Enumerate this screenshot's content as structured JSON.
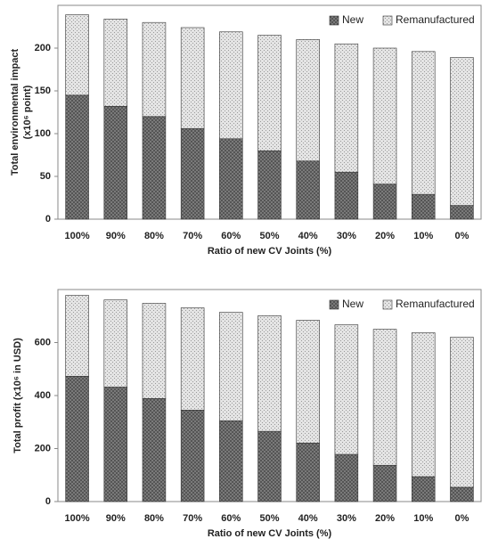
{
  "chart_data": [
    {
      "type": "stacked-bar",
      "ylabel": [
        "Total environmental impact",
        "(x10⁶ point)"
      ],
      "xlabel": "Ratio of new CV Joints (%)",
      "categories": [
        "100%",
        "90%",
        "80%",
        "70%",
        "60%",
        "50%",
        "40%",
        "30%",
        "20%",
        "10%",
        "0%"
      ],
      "series": [
        {
          "name": "New",
          "color": "#7a7a7a",
          "values": [
            145,
            132,
            120,
            106,
            94,
            80,
            68,
            55,
            41,
            29,
            16
          ]
        },
        {
          "name": "Remanufactured",
          "color": "#e4e4e4",
          "values": [
            94,
            102,
            110,
            118,
            125,
            135,
            142,
            150,
            159,
            167,
            173
          ]
        }
      ],
      "ylim": [
        0,
        250
      ],
      "yticks": [
        0,
        50,
        100,
        150,
        200
      ],
      "legend": "upper right"
    },
    {
      "type": "stacked-bar",
      "ylabel": [
        "Total profit (x10⁶ in USD)"
      ],
      "xlabel": "Ratio of new CV Joints (%)",
      "categories": [
        "100%",
        "90%",
        "80%",
        "70%",
        "60%",
        "50%",
        "40%",
        "30%",
        "20%",
        "10%",
        "0%"
      ],
      "series": [
        {
          "name": "New",
          "color": "#7a7a7a",
          "values": [
            473,
            432,
            389,
            345,
            305,
            265,
            221,
            178,
            137,
            94,
            54
          ]
        },
        {
          "name": "Remanufactured",
          "color": "#e4e4e4",
          "values": [
            305,
            329,
            359,
            386,
            409,
            436,
            463,
            489,
            513,
            543,
            566
          ]
        }
      ],
      "ylim": [
        0,
        800
      ],
      "yticks": [
        0,
        200,
        400,
        600
      ],
      "legend": "upper right"
    }
  ]
}
